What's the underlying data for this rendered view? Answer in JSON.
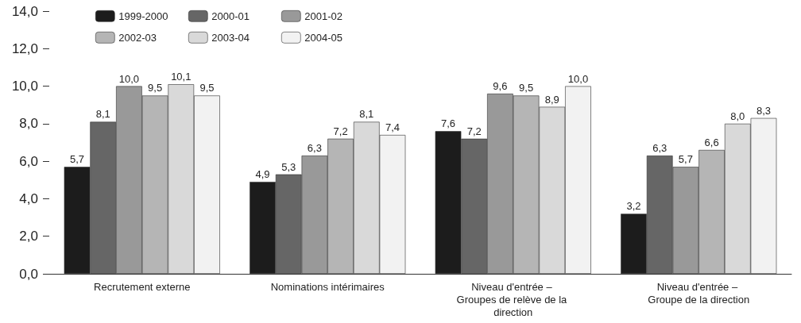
{
  "chart_data": {
    "type": "bar",
    "categories": [
      "Recrutement externe",
      "Nominations intérimaires",
      "Niveau d'entrée – Groupes de relève de la direction",
      "Niveau d'entrée – Groupe de la direction"
    ],
    "series": [
      {
        "name": "1999-2000",
        "color": "#1c1c1c",
        "values": [
          5.7,
          4.9,
          7.6,
          3.2
        ],
        "value_labels": [
          "5,7",
          "4,9",
          "7,6",
          "3,2"
        ]
      },
      {
        "name": "2000-01",
        "color": "#666666",
        "values": [
          8.1,
          5.3,
          7.2,
          6.3
        ],
        "value_labels": [
          "8,1",
          "5,3",
          "7,2",
          "6,3"
        ]
      },
      {
        "name": "2001-02",
        "color": "#999999",
        "values": [
          10.0,
          6.3,
          9.6,
          5.7
        ],
        "value_labels": [
          "10,0",
          "6,3",
          "9,6",
          "5,7"
        ]
      },
      {
        "name": "2002-03",
        "color": "#b5b5b5",
        "values": [
          9.5,
          7.2,
          9.5,
          6.6
        ],
        "value_labels": [
          "9,5",
          "7,2",
          "9,5",
          "6,6"
        ]
      },
      {
        "name": "2003-04",
        "color": "#d9d9d9",
        "values": [
          10.1,
          8.1,
          8.9,
          8.0
        ],
        "value_labels": [
          "10,1",
          "8,1",
          "8,9",
          "8,0"
        ]
      },
      {
        "name": "2004-05",
        "color": "#f2f2f2",
        "values": [
          9.5,
          7.4,
          10.0,
          8.3
        ],
        "value_labels": [
          "9,5",
          "7,4",
          "10,0",
          "8,3"
        ]
      }
    ],
    "ylim": [
      0,
      14
    ],
    "yticks": [
      {
        "value": 0,
        "label": "0,0"
      },
      {
        "value": 2,
        "label": "2,0"
      },
      {
        "value": 4,
        "label": "4,0"
      },
      {
        "value": 6,
        "label": "6,0"
      },
      {
        "value": 8,
        "label": "8,0"
      },
      {
        "value": 10,
        "label": "10,0"
      },
      {
        "value": 12,
        "label": "12,0"
      },
      {
        "value": 14,
        "label": "14,0"
      }
    ],
    "grid": false,
    "legend": "top left"
  }
}
